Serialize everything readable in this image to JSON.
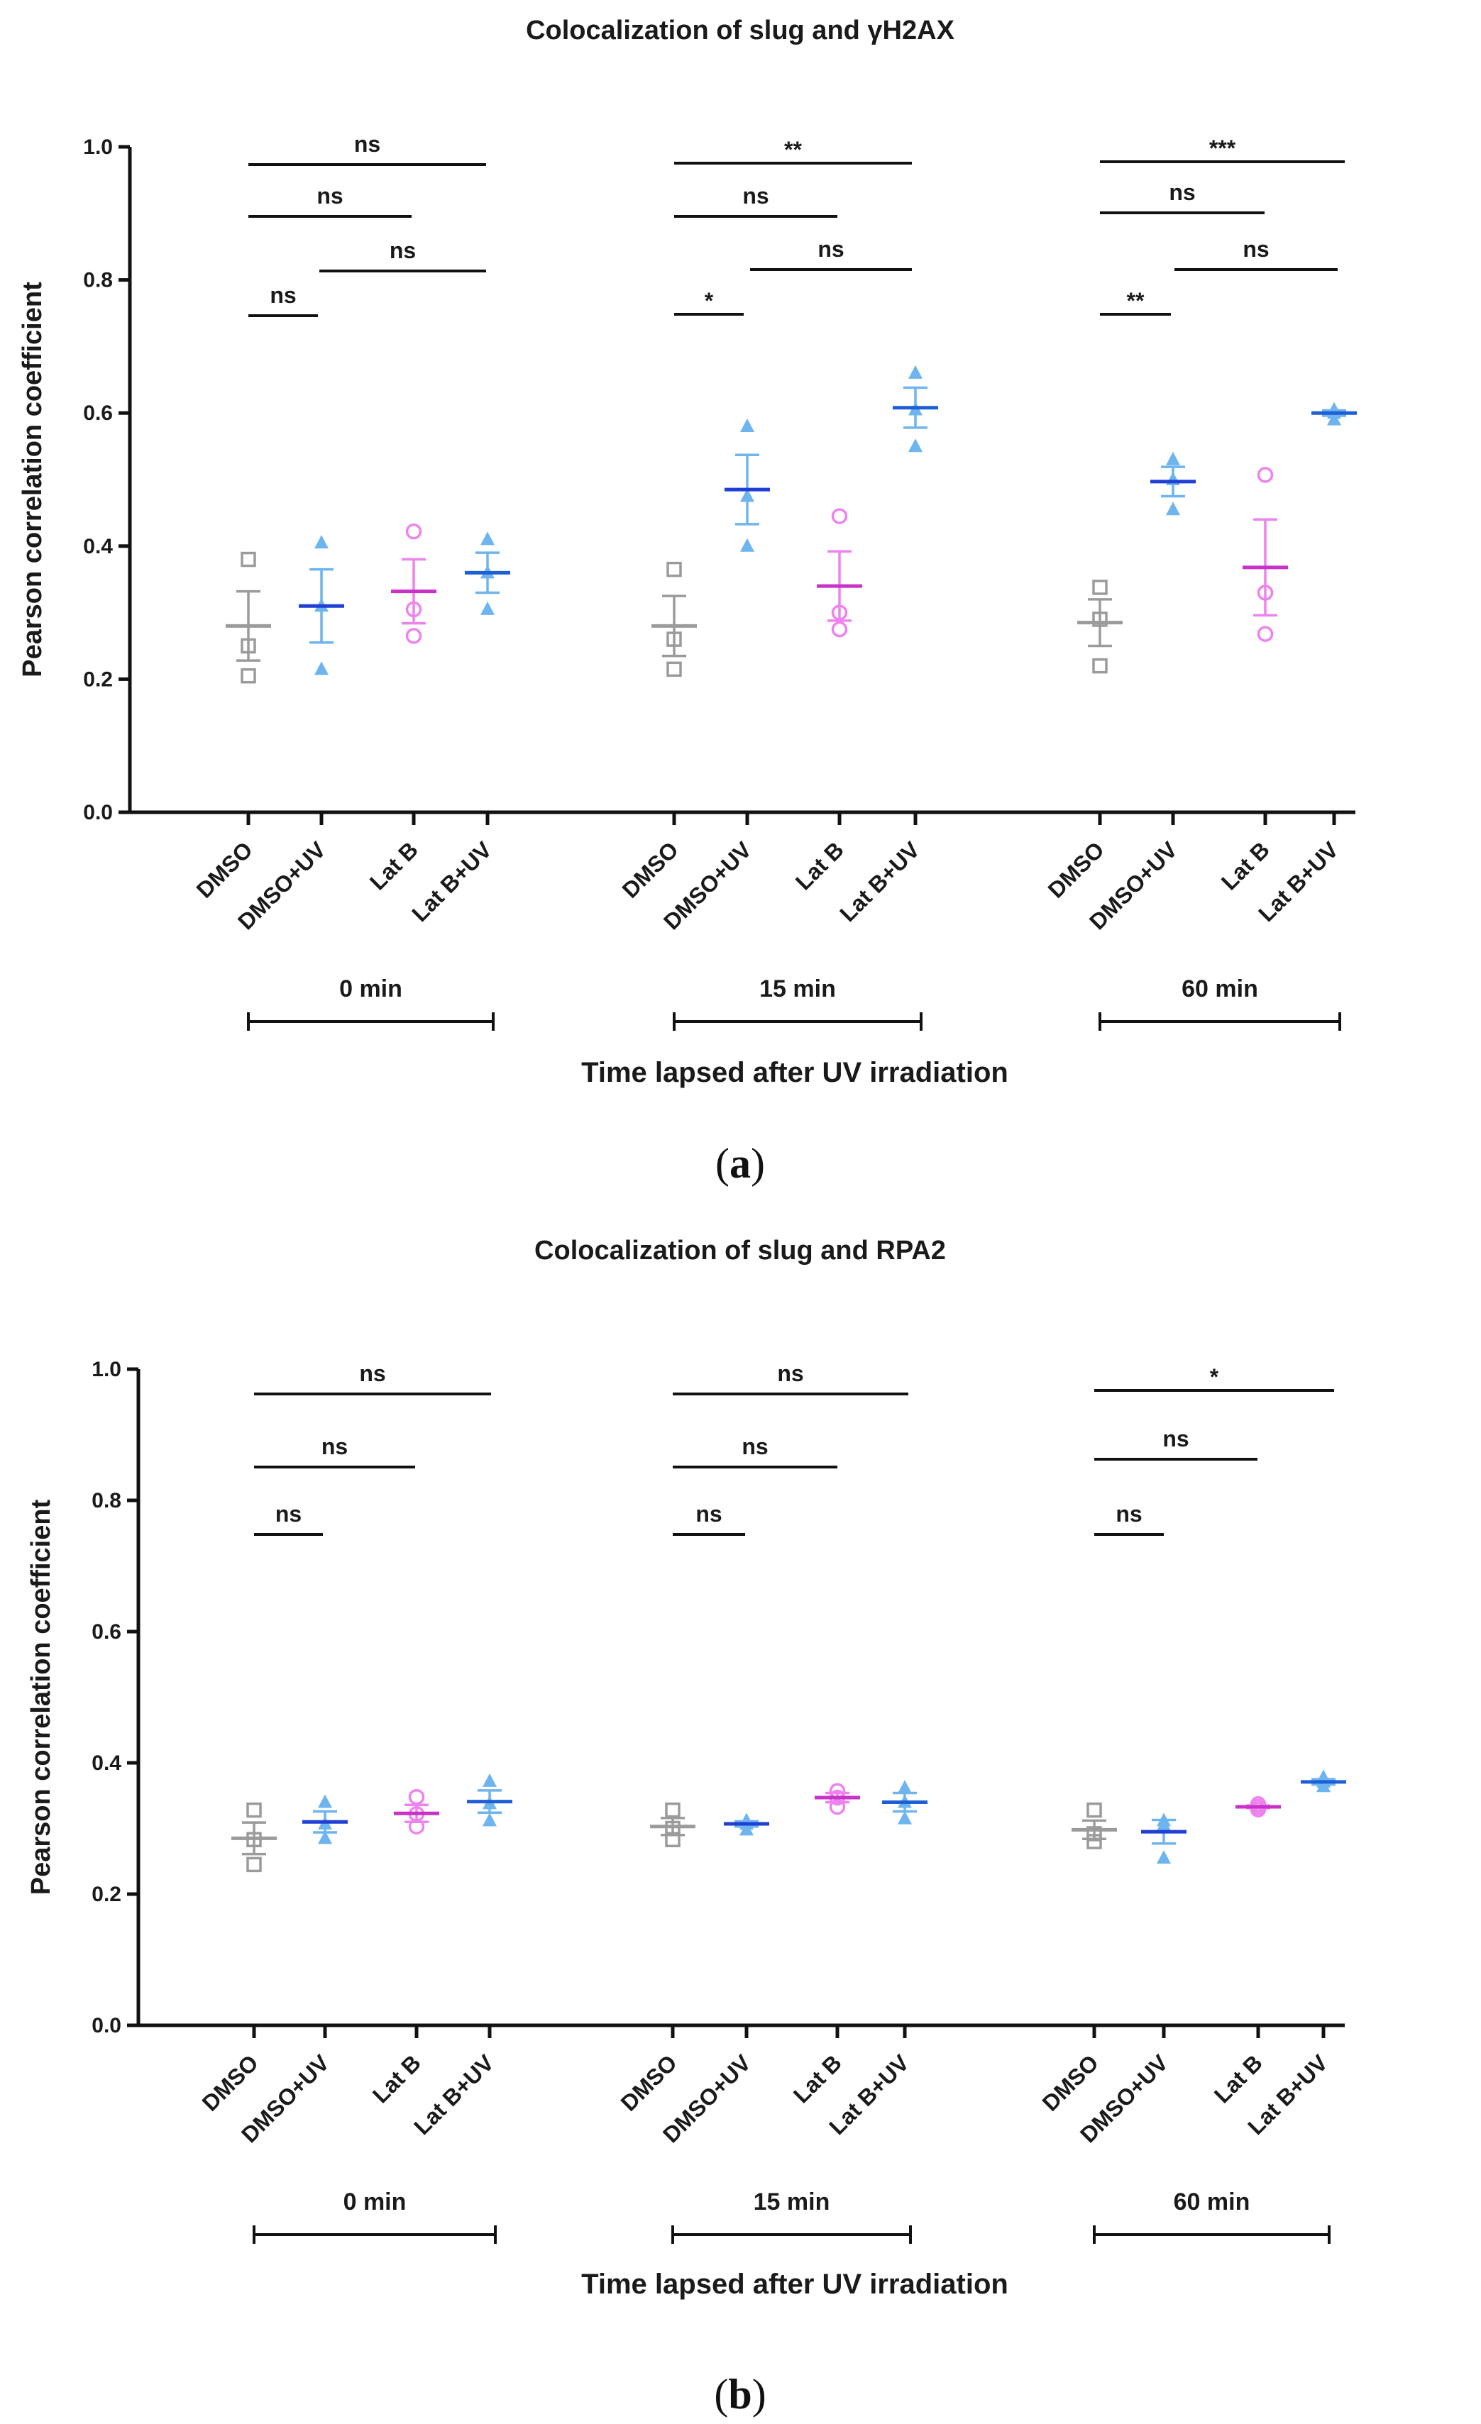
{
  "figure": {
    "label_a": "a",
    "label_b": "b"
  },
  "colors": {
    "DMSO": "#9b9b9b",
    "DMSO+UV_pts": "#6eb4ee",
    "DMSO+UV_mean": "#1f3fd6",
    "Lat B_pts": "#ee82ee",
    "Lat B_mean": "#c832c8",
    "Lat B+UV_pts": "#6eb4ee",
    "Lat B+UV_mean": "#1f5fd6",
    "axis": "#111111"
  },
  "chart_data": [
    {
      "type": "scatter",
      "title": "Colocalization of slug and γH2AX",
      "xlabel": "Time lapsed after UV irradiation",
      "ylabel": "Pearson correlation coefficient",
      "ylim": [
        0,
        1.0
      ],
      "yticks": [
        "0.0",
        "0.2",
        "0.4",
        "0.6",
        "0.8",
        "1.0"
      ],
      "categories": [
        "DMSO",
        "DMSO+UV",
        "Lat B",
        "Lat B+UV"
      ],
      "groups": [
        {
          "name": "0 min",
          "series": [
            {
              "name": "DMSO",
              "points": [
                0.38,
                0.25,
                0.205
              ],
              "mean": 0.28,
              "sem": 0.052
            },
            {
              "name": "DMSO+UV",
              "points": [
                0.405,
                0.31,
                0.215
              ],
              "mean": 0.31,
              "sem": 0.055
            },
            {
              "name": "Lat B",
              "points": [
                0.422,
                0.305,
                0.265
              ],
              "mean": 0.332,
              "sem": 0.048
            },
            {
              "name": "Lat B+UV",
              "points": [
                0.41,
                0.36,
                0.305
              ],
              "mean": 0.36,
              "sem": 0.03
            }
          ],
          "comparisons": [
            {
              "from": 0,
              "to": 3,
              "label": "ns"
            },
            {
              "from": 0,
              "to": 2,
              "label": "ns"
            },
            {
              "from": 1,
              "to": 3,
              "label": "ns"
            },
            {
              "from": 0,
              "to": 1,
              "label": "ns"
            }
          ]
        },
        {
          "name": "15 min",
          "series": [
            {
              "name": "DMSO",
              "points": [
                0.365,
                0.26,
                0.215
              ],
              "mean": 0.28,
              "sem": 0.045
            },
            {
              "name": "DMSO+UV",
              "points": [
                0.58,
                0.475,
                0.4
              ],
              "mean": 0.485,
              "sem": 0.052
            },
            {
              "name": "Lat B",
              "points": [
                0.445,
                0.3,
                0.275
              ],
              "mean": 0.34,
              "sem": 0.052
            },
            {
              "name": "Lat B+UV",
              "points": [
                0.66,
                0.605,
                0.55
              ],
              "mean": 0.608,
              "sem": 0.03
            }
          ],
          "comparisons": [
            {
              "from": 0,
              "to": 3,
              "label": "**"
            },
            {
              "from": 0,
              "to": 2,
              "label": "ns"
            },
            {
              "from": 1,
              "to": 3,
              "label": "ns"
            },
            {
              "from": 0,
              "to": 1,
              "label": "*"
            }
          ]
        },
        {
          "name": "60 min",
          "series": [
            {
              "name": "DMSO",
              "points": [
                0.338,
                0.29,
                0.22
              ],
              "mean": 0.285,
              "sem": 0.035
            },
            {
              "name": "DMSO+UV",
              "points": [
                0.53,
                0.5,
                0.455
              ],
              "mean": 0.497,
              "sem": 0.022
            },
            {
              "name": "Lat B",
              "points": [
                0.507,
                0.33,
                0.268
              ],
              "mean": 0.368,
              "sem": 0.072
            },
            {
              "name": "Lat B+UV",
              "points": [
                0.605,
                0.6,
                0.59
              ],
              "mean": 0.6,
              "sem": 0.004
            }
          ],
          "comparisons": [
            {
              "from": 0,
              "to": 3,
              "label": "***"
            },
            {
              "from": 0,
              "to": 2,
              "label": "ns"
            },
            {
              "from": 1,
              "to": 3,
              "label": "ns"
            },
            {
              "from": 0,
              "to": 1,
              "label": "**"
            }
          ]
        }
      ]
    },
    {
      "type": "scatter",
      "title": "Colocalization of slug and RPA2",
      "xlabel": "Time lapsed after UV irradiation",
      "ylabel": "Pearson correlation coefficient",
      "ylim": [
        0,
        1.0
      ],
      "yticks": [
        "0.0",
        "0.2",
        "0.4",
        "0.6",
        "0.8",
        "1.0"
      ],
      "categories": [
        "DMSO",
        "DMSO+UV",
        "Lat B",
        "Lat B+UV"
      ],
      "groups": [
        {
          "name": "0 min",
          "series": [
            {
              "name": "DMSO",
              "points": [
                0.328,
                0.283,
                0.245
              ],
              "mean": 0.285,
              "sem": 0.024
            },
            {
              "name": "DMSO+UV",
              "points": [
                0.34,
                0.307,
                0.285
              ],
              "mean": 0.31,
              "sem": 0.016
            },
            {
              "name": "Lat B",
              "points": [
                0.348,
                0.322,
                0.303
              ],
              "mean": 0.323,
              "sem": 0.013
            },
            {
              "name": "Lat B+UV",
              "points": [
                0.372,
                0.338,
                0.312
              ],
              "mean": 0.341,
              "sem": 0.017
            }
          ],
          "comparisons": [
            {
              "from": 0,
              "to": 3,
              "label": "ns"
            },
            {
              "from": 0,
              "to": 2,
              "label": "ns"
            },
            {
              "from": 0,
              "to": 1,
              "label": "ns"
            }
          ]
        },
        {
          "name": "15 min",
          "series": [
            {
              "name": "DMSO",
              "points": [
                0.328,
                0.3,
                0.283
              ],
              "mean": 0.303,
              "sem": 0.013
            },
            {
              "name": "DMSO+UV",
              "points": [
                0.312,
                0.307,
                0.298
              ],
              "mean": 0.307,
              "sem": 0.004
            },
            {
              "name": "Lat B",
              "points": [
                0.357,
                0.347,
                0.333
              ],
              "mean": 0.347,
              "sem": 0.007
            },
            {
              "name": "Lat B+UV",
              "points": [
                0.362,
                0.34,
                0.315
              ],
              "mean": 0.34,
              "sem": 0.014
            }
          ],
          "comparisons": [
            {
              "from": 0,
              "to": 3,
              "label": "ns"
            },
            {
              "from": 0,
              "to": 2,
              "label": "ns"
            },
            {
              "from": 0,
              "to": 1,
              "label": "ns"
            }
          ]
        },
        {
          "name": "60 min",
          "series": [
            {
              "name": "DMSO",
              "points": [
                0.328,
                0.292,
                0.28
              ],
              "mean": 0.298,
              "sem": 0.014
            },
            {
              "name": "DMSO+UV",
              "points": [
                0.312,
                0.305,
                0.255
              ],
              "mean": 0.295,
              "sem": 0.018
            },
            {
              "name": "Lat B",
              "points": [
                0.337,
                0.333,
                0.329
              ],
              "mean": 0.333,
              "sem": 0.002
            },
            {
              "name": "Lat B+UV",
              "points": [
                0.378,
                0.371,
                0.364
              ],
              "mean": 0.371,
              "sem": 0.004
            }
          ],
          "comparisons": [
            {
              "from": 0,
              "to": 3,
              "label": "*"
            },
            {
              "from": 0,
              "to": 2,
              "label": "ns"
            },
            {
              "from": 0,
              "to": 1,
              "label": "ns"
            }
          ]
        }
      ]
    }
  ]
}
